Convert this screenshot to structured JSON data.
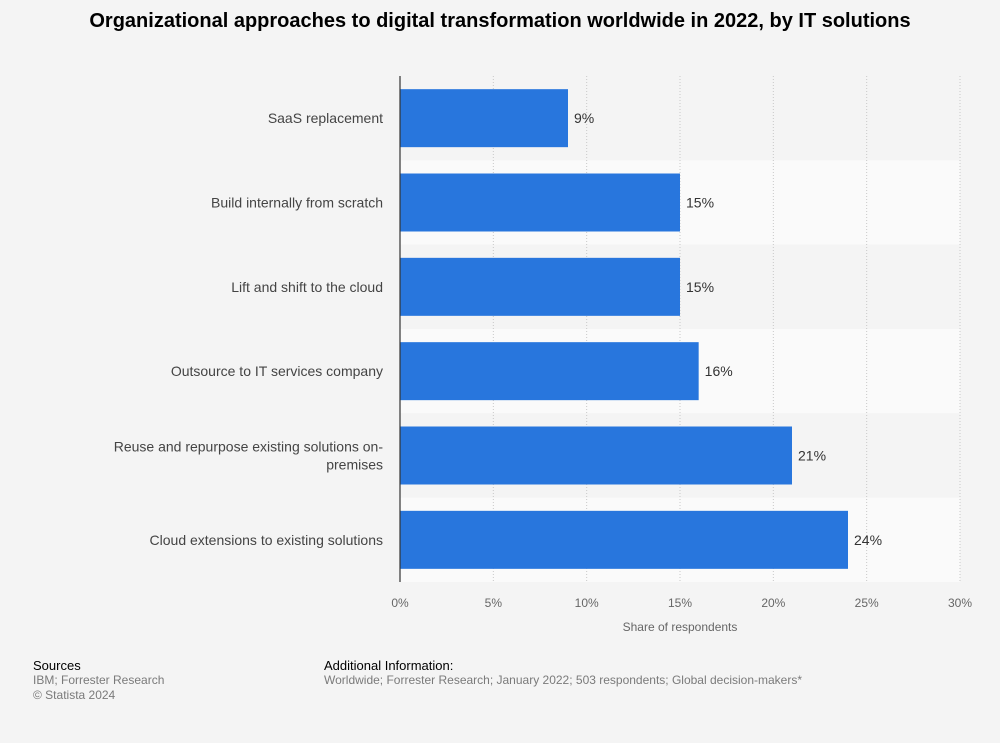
{
  "page": {
    "title": "Organizational approaches to digital transformation worldwide in 2022, by IT solutions"
  },
  "chart_data": {
    "type": "bar",
    "orientation": "horizontal",
    "categories": [
      "SaaS replacement",
      "Build internally from scratch",
      "Lift and shift to the cloud",
      "Outsource to IT services company",
      "Reuse and repurpose existing solutions on-premises",
      "Cloud extensions to existing solutions"
    ],
    "category_lines": [
      [
        "SaaS replacement"
      ],
      [
        "Build internally from scratch"
      ],
      [
        "Lift and shift to the cloud"
      ],
      [
        "Outsource to IT services company"
      ],
      [
        "Reuse and repurpose existing solutions on-",
        "premises"
      ],
      [
        "Cloud extensions to existing solutions"
      ]
    ],
    "values": [
      9,
      15,
      15,
      16,
      21,
      24
    ],
    "value_labels": [
      "9%",
      "15%",
      "15%",
      "16%",
      "21%",
      "24%"
    ],
    "xlabel": "Share of respondents",
    "ylabel": "",
    "xlim": [
      0,
      30
    ],
    "xticks": [
      0,
      5,
      10,
      15,
      20,
      25,
      30
    ],
    "xtick_labels": [
      "0%",
      "5%",
      "10%",
      "15%",
      "20%",
      "25%",
      "30%"
    ],
    "grid": true,
    "bar_color": "#2876dd",
    "band_colors": [
      "#f4f4f4",
      "#fafafa"
    ]
  },
  "footer": {
    "sources_heading": "Sources",
    "sources_line1": "IBM; Forrester Research",
    "sources_line2": "© Statista 2024",
    "info_heading": "Additional Information:",
    "info_text": "Worldwide; Forrester Research; January 2022; 503 respondents; Global decision-makers*"
  }
}
